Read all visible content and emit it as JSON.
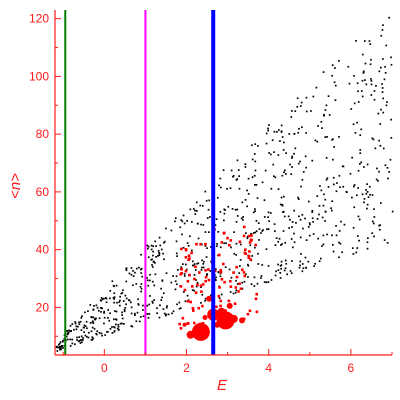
{
  "chart_data": {
    "type": "scatter",
    "xlabel": "E",
    "ylabel": "<n>",
    "xlim": [
      -1.2,
      7.0
    ],
    "ylim": [
      3.5,
      123
    ],
    "x_ticks": [
      0,
      2,
      4,
      6
    ],
    "y_ticks": [
      20,
      40,
      60,
      80,
      100,
      120
    ],
    "colors": {
      "axes": "#ff1a1a",
      "black_points": "#000000",
      "red_points": "#ff0000",
      "line_green": "#008000",
      "line_magenta": "#ff00ff",
      "line_blue": "#0000ff"
    },
    "vertical_lines": [
      {
        "x": -0.95,
        "color": "#008000",
        "width": "thin"
      },
      {
        "x": 1.0,
        "color": "#ff00ff",
        "width": "thin"
      },
      {
        "x": 2.65,
        "color": "#0000ff",
        "width": "thick"
      }
    ],
    "grid": false,
    "legend": "none",
    "series_note": "black small dots form a wedge from (-1.2,7) widening to x=7; red points cluster around x=1.8-3.6, y=10-45; large red markers at bottom near x=2.2-3.0"
  }
}
